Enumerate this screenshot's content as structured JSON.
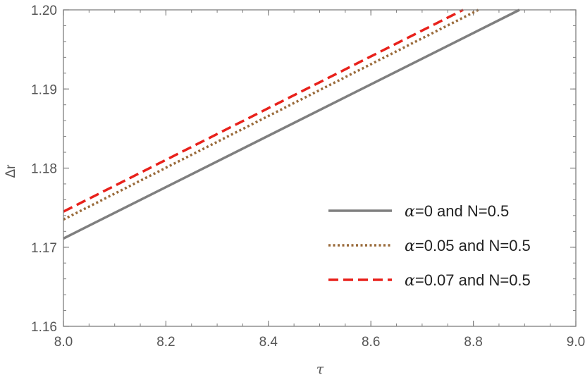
{
  "chart_data": {
    "type": "line",
    "xlabel": "τ",
    "ylabel": "Δr",
    "xlim": [
      8.0,
      9.0
    ],
    "ylim": [
      1.16,
      1.2
    ],
    "x_ticks": [
      8.0,
      8.2,
      8.4,
      8.6,
      8.8,
      9.0
    ],
    "x_tick_labels": [
      "8.0",
      "8.2",
      "8.4",
      "8.6",
      "8.8",
      "9.0"
    ],
    "y_ticks": [
      1.16,
      1.17,
      1.18,
      1.19,
      1.2
    ],
    "y_tick_labels": [
      "1.16",
      "1.17",
      "1.18",
      "1.19",
      "1.20"
    ],
    "x_minor_step": 0.05,
    "y_minor_step": 0.002,
    "grid": false,
    "legend_position": "right-center",
    "series": [
      {
        "greek": "α",
        "label_rest": "=0 and N=0.5",
        "style": "solid",
        "color": "#7f7f7f",
        "x": [
          8.0,
          8.89
        ],
        "y": [
          1.1711,
          1.2
        ]
      },
      {
        "greek": "α",
        "label_rest": "=0.05 and N=0.5",
        "style": "dotted",
        "color": "#9a6b3b",
        "x": [
          8.0,
          8.81
        ],
        "y": [
          1.1735,
          1.2
        ]
      },
      {
        "greek": "α",
        "label_rest": "=0.07 and N=0.5",
        "style": "dashed",
        "color": "#e8211b",
        "x": [
          8.0,
          8.78
        ],
        "y": [
          1.1745,
          1.2
        ]
      }
    ]
  }
}
